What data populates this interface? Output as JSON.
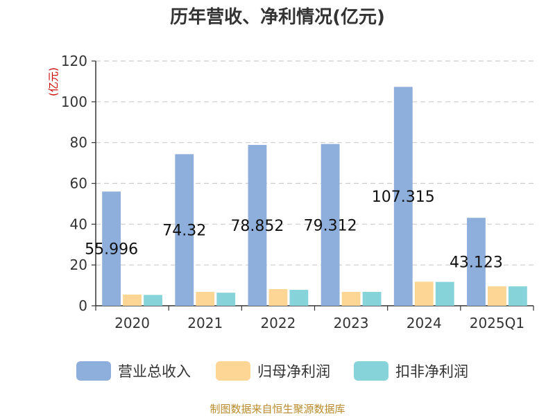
{
  "chart_data": {
    "type": "bar",
    "title": "历年营收、净利情况(亿元)",
    "ylabel": "(亿元)",
    "xlabel": "",
    "ylim": [
      0,
      120
    ],
    "yticks": [
      0,
      20,
      40,
      60,
      80,
      100,
      120
    ],
    "grid": true,
    "legend_position": "bottom",
    "categories": [
      "2020",
      "2021",
      "2022",
      "2023",
      "2024",
      "2025Q1"
    ],
    "series": [
      {
        "name": "营业总收入",
        "color": "#8eaedb",
        "values": [
          55.996,
          74.32,
          78.852,
          79.312,
          107.315,
          43.123
        ],
        "show_labels": true
      },
      {
        "name": "归母净利润",
        "color": "#fdd695",
        "values": [
          5.5,
          6.8,
          8.2,
          6.8,
          11.8,
          9.5
        ],
        "show_labels": false
      },
      {
        "name": "扣非净利润",
        "color": "#86d3d9",
        "values": [
          5.3,
          6.4,
          7.8,
          6.8,
          11.7,
          9.5
        ],
        "show_labels": false
      }
    ],
    "data_labels": [
      "55.996",
      "74.32",
      "78.852",
      "79.312",
      "107.315",
      "43.123"
    ]
  },
  "source": "制图数据来自恒生聚源数据库"
}
